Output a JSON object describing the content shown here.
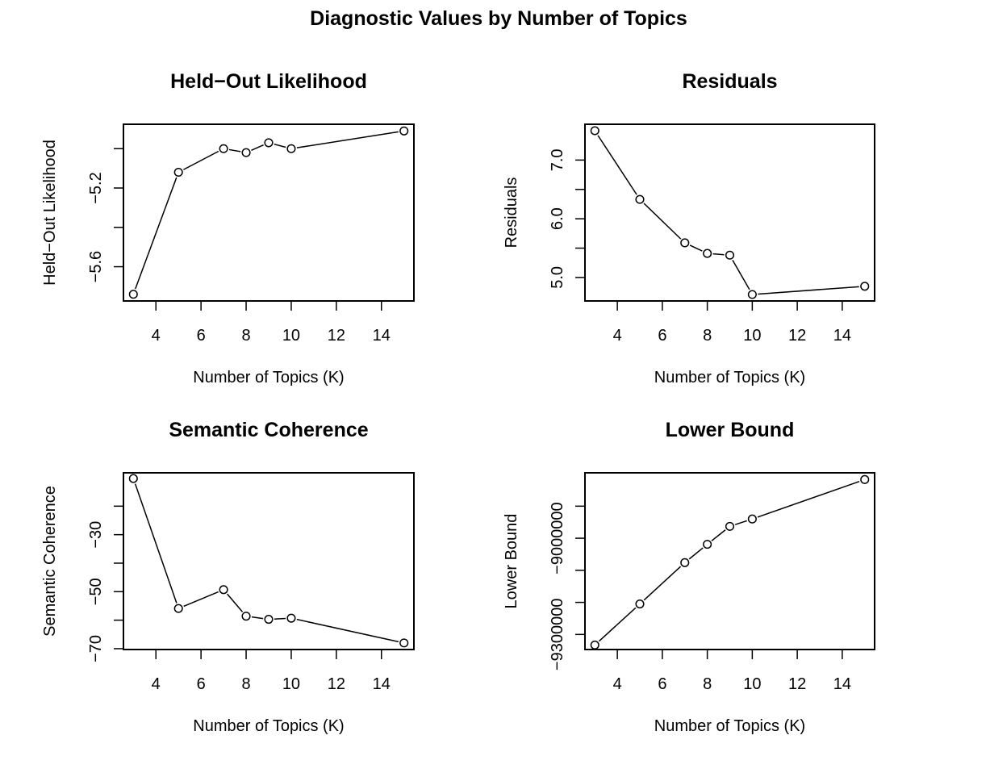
{
  "title": "Diagnostic Values by Number of Topics",
  "colors": {
    "line": "#000000",
    "background": "#ffffff"
  },
  "chart_data": [
    {
      "type": "line",
      "title": "Held−Out Likelihood",
      "xlabel": "Number of Topics (K)",
      "ylabel": "Held−Out Likelihood",
      "x": [
        3,
        5,
        7,
        8,
        9,
        10,
        15
      ],
      "series": [
        {
          "values": [
            -5.74,
            -5.12,
            -5.0,
            -5.02,
            -4.97,
            -5.0,
            -4.91
          ]
        }
      ],
      "xlim": [
        2.56,
        15.44
      ],
      "ylim": [
        -5.774,
        -4.876
      ],
      "xticks": [
        4,
        6,
        8,
        10,
        12,
        14
      ],
      "xtick_labels": [
        "4",
        "6",
        "8",
        "10",
        "12",
        "14"
      ],
      "yticks": [
        -5.6,
        -5.4,
        -5.2,
        -5.0
      ],
      "ytick_labels": [
        "−5.6",
        "",
        "−5.2",
        ""
      ],
      "grid": false,
      "markers": "open-circle"
    },
    {
      "type": "line",
      "title": "Residuals",
      "xlabel": "Number of Topics (K)",
      "ylabel": "Residuals",
      "x": [
        3,
        5,
        7,
        8,
        9,
        10,
        15
      ],
      "series": [
        {
          "values": [
            7.5,
            6.33,
            5.59,
            5.41,
            5.38,
            4.71,
            4.85
          ]
        }
      ],
      "xlim": [
        2.56,
        15.44
      ],
      "ylim": [
        4.6,
        7.61
      ],
      "xticks": [
        4,
        6,
        8,
        10,
        12,
        14
      ],
      "xtick_labels": [
        "4",
        "6",
        "8",
        "10",
        "12",
        "14"
      ],
      "yticks": [
        5.0,
        5.5,
        6.0,
        6.5,
        7.0
      ],
      "ytick_labels": [
        "5.0",
        "",
        "6.0",
        "",
        "7.0"
      ],
      "grid": false,
      "markers": "open-circle"
    },
    {
      "type": "line",
      "title": "Semantic Coherence",
      "xlabel": "Number of Topics (K)",
      "ylabel": "Semantic Coherence",
      "x": [
        3,
        5,
        7,
        8,
        9,
        10,
        15
      ],
      "series": [
        {
          "values": [
            -10.3,
            -55.9,
            -49.3,
            -58.6,
            -59.7,
            -59.3,
            -68.0
          ]
        }
      ],
      "xlim": [
        2.56,
        15.44
      ],
      "ylim": [
        -70.3,
        -8.3
      ],
      "xticks": [
        4,
        6,
        8,
        10,
        12,
        14
      ],
      "xtick_labels": [
        "4",
        "6",
        "8",
        "10",
        "12",
        "14"
      ],
      "yticks": [
        -70,
        -60,
        -50,
        -40,
        -30,
        -20
      ],
      "ytick_labels": [
        "−70",
        "",
        "−50",
        "",
        "−30",
        ""
      ],
      "grid": false,
      "markers": "open-circle"
    },
    {
      "type": "line",
      "title": "Lower Bound",
      "xlabel": "Number of Topics (K)",
      "ylabel": "Lower Bound",
      "x": [
        3,
        5,
        7,
        8,
        9,
        10,
        15
      ],
      "series": [
        {
          "values": [
            -9333000,
            -9205000,
            -9076000,
            -9019000,
            -8963000,
            -8940000,
            -8817000
          ]
        }
      ],
      "xlim": [
        2.56,
        15.44
      ],
      "ylim": [
        -9347000,
        -8796000
      ],
      "xticks": [
        4,
        6,
        8,
        10,
        12,
        14
      ],
      "xtick_labels": [
        "4",
        "6",
        "8",
        "10",
        "12",
        "14"
      ],
      "yticks": [
        -9300000,
        -9200000,
        -9100000,
        -9000000,
        -8900000
      ],
      "ytick_labels": [
        "−9300000",
        "",
        "",
        "−9000000",
        ""
      ],
      "grid": false,
      "markers": "open-circle"
    }
  ]
}
